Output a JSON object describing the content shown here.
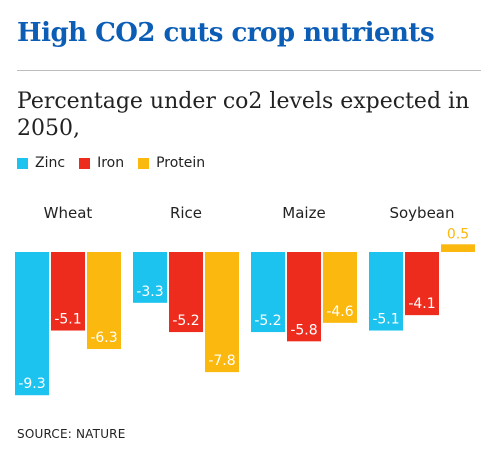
{
  "title": "High CO2 cuts crop nutrients",
  "subtitle": "Percentage under co2 levels expected in 2050,",
  "source": "SOURCE: NATURE",
  "colors": {
    "title": "#0b5db5",
    "zinc": "#1cc3ee",
    "iron": "#ee2c1d",
    "protein": "#fbb80f"
  },
  "chart_data": {
    "type": "bar",
    "categories": [
      "Wheat",
      "Rice",
      "Maize",
      "Soybean"
    ],
    "series": [
      {
        "name": "Zinc",
        "color": "#1cc3ee",
        "values": [
          -9.3,
          -3.3,
          -5.2,
          -5.1
        ]
      },
      {
        "name": "Iron",
        "color": "#ee2c1d",
        "values": [
          -5.1,
          -5.2,
          -5.8,
          -4.1
        ]
      },
      {
        "name": "Protein",
        "color": "#fbb80f",
        "values": [
          -6.3,
          -7.8,
          -4.6,
          0.5
        ]
      }
    ],
    "title": "High CO2 cuts crop nutrients",
    "subtitle": "Percentage under co2 levels expected in 2050,",
    "xlabel": "",
    "ylabel": "",
    "ylim": [
      -9.3,
      0.5
    ],
    "grid": false,
    "legend": "top-left"
  }
}
